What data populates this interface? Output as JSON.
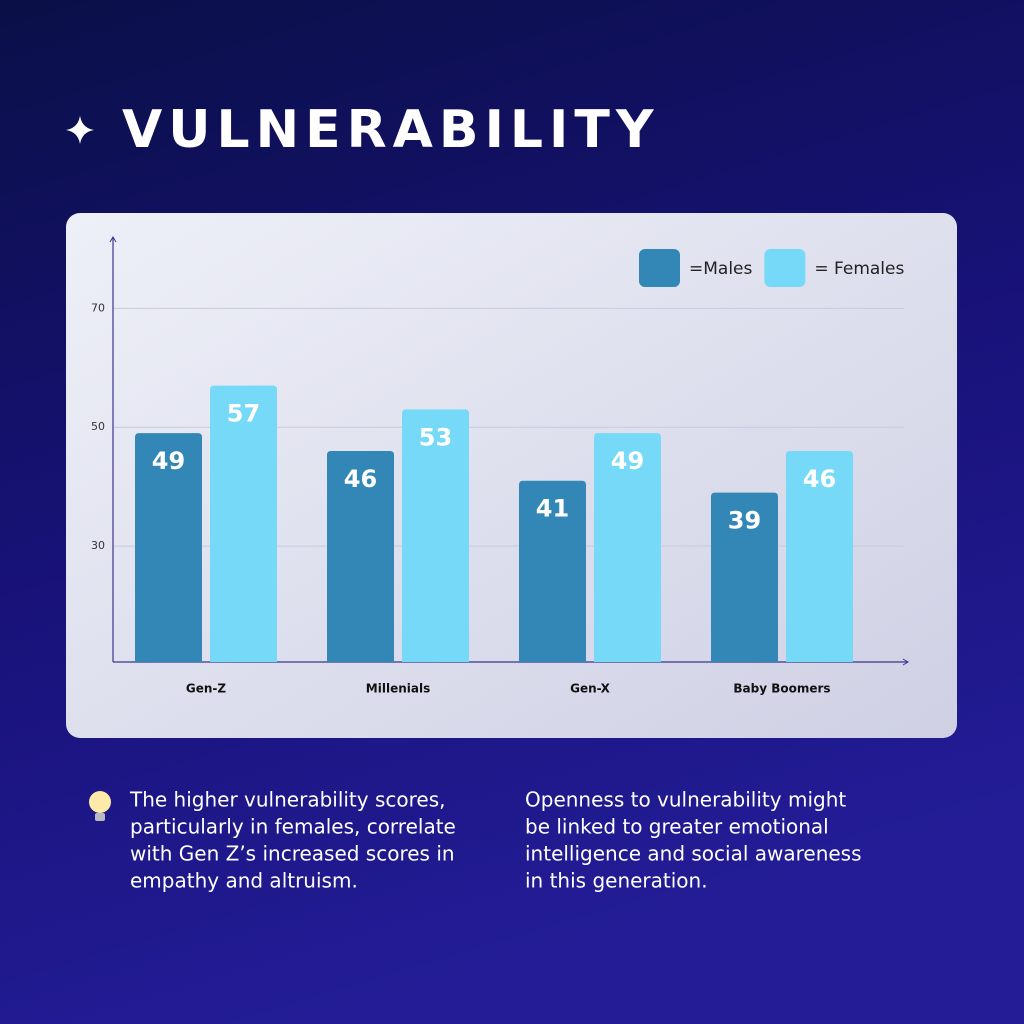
{
  "title": "VULNERABILITY",
  "chart_data": {
    "type": "bar",
    "categories": [
      "Gen-Z",
      "Millenials",
      "Gen-X",
      "Baby Boomers"
    ],
    "series": [
      {
        "name": "=Males",
        "color": "#3387b6",
        "values": [
          49,
          46,
          41,
          39
        ]
      },
      {
        "name": "= Females",
        "color": "#76d9f7",
        "values": [
          57,
          53,
          49,
          46
        ]
      }
    ],
    "ylim": [
      10,
      82
    ],
    "yticks": [
      30,
      50,
      70
    ],
    "grid": true,
    "legend": "top-right"
  },
  "notes": [
    [
      "The higher vulnerability scores,",
      "particularly in females, correlate",
      "with Gen Z’s increased scores in",
      "empathy and altruism."
    ],
    [
      "Openness to vulnerability might",
      "be linked to greater emotional",
      "intelligence and social awareness",
      "in this generation."
    ]
  ]
}
